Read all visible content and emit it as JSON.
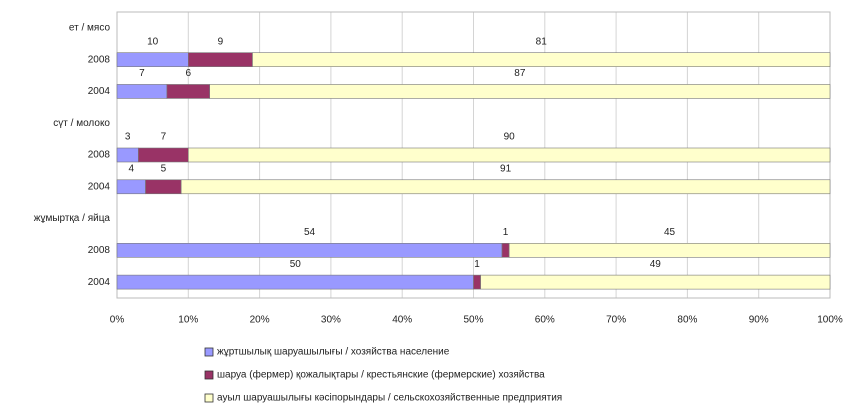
{
  "chart_data": {
    "type": "stacked-bar-horizontal",
    "categories": [
      "ет / мясо",
      "2008",
      "2004",
      "сүт / молоко",
      "2008",
      "2004",
      "жұмыртқа / яйца",
      "2008",
      "2004"
    ],
    "series": [
      {
        "name": "жұртшылық шаруашылығы / хозяйства население",
        "color": "#9999ff",
        "values": [
          null,
          10,
          7,
          null,
          3,
          4,
          null,
          54,
          50
        ]
      },
      {
        "name": "шаруа (фермер) қожалықтары / крестьянские (фермерские) хозяйства",
        "color": "#993366",
        "values": [
          null,
          9,
          6,
          null,
          7,
          5,
          null,
          1,
          1
        ]
      },
      {
        "name": "ауыл шаруашылығы кәсіпорындары / сельскохозяйственные предприятия",
        "color": "#ffffcc",
        "values": [
          null,
          81,
          87,
          null,
          90,
          91,
          null,
          45,
          49
        ]
      }
    ],
    "xlim": [
      0,
      100
    ],
    "xticks": [
      {
        "value": 0,
        "label": "0%"
      },
      {
        "value": 10,
        "label": "10%"
      },
      {
        "value": 20,
        "label": "20%"
      },
      {
        "value": 30,
        "label": "30%"
      },
      {
        "value": 40,
        "label": "40%"
      },
      {
        "value": 50,
        "label": "50%"
      },
      {
        "value": 60,
        "label": "60%"
      },
      {
        "value": 70,
        "label": "70%"
      },
      {
        "value": 80,
        "label": "80%"
      },
      {
        "value": 90,
        "label": "90%"
      },
      {
        "value": 100,
        "label": "100%"
      }
    ],
    "grid": true,
    "legend": "bottom"
  }
}
